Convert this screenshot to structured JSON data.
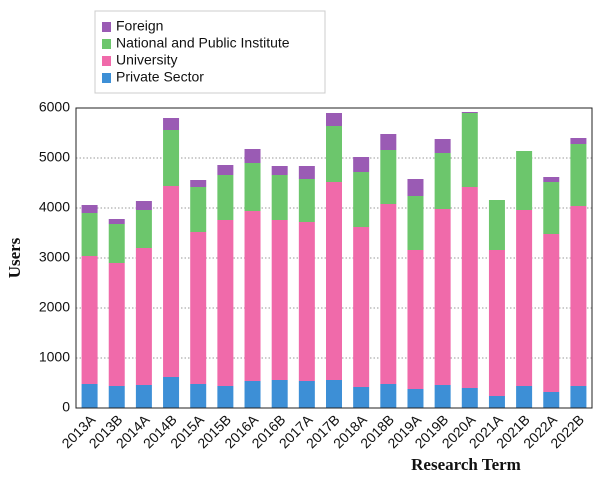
{
  "chart_data": {
    "type": "stacked_bar",
    "x_label": "Research Term",
    "y_label": "Users",
    "categories": [
      "2013A",
      "2013B",
      "2014A",
      "2014B",
      "2015A",
      "2015B",
      "2016A",
      "2016B",
      "2017A",
      "2017B",
      "2018A",
      "2018B",
      "2019A",
      "2019B",
      "2020A",
      "2021A",
      "2021B",
      "2022A",
      "2022B"
    ],
    "series": [
      {
        "name": "Private Sector",
        "color": "#3d8fd6",
        "values": [
          480,
          440,
          460,
          620,
          480,
          440,
          540,
          560,
          540,
          560,
          420,
          480,
          380,
          460,
          400,
          240,
          440,
          320,
          440
        ]
      },
      {
        "name": "University",
        "color": "#f06aaa",
        "values": [
          2560,
          2460,
          2740,
          3820,
          3040,
          3320,
          3400,
          3200,
          3180,
          3960,
          3200,
          3600,
          2780,
          3520,
          4020,
          2920,
          3520,
          3160,
          3600
        ]
      },
      {
        "name": "National and Public Institute",
        "color": "#6cc66c",
        "values": [
          860,
          780,
          760,
          1120,
          900,
          900,
          960,
          900,
          860,
          1120,
          1100,
          1080,
          1080,
          1120,
          1480,
          1000,
          1180,
          1040,
          1240
        ]
      },
      {
        "name": "Foreign",
        "color": "#9a5bb4",
        "values": [
          160,
          100,
          180,
          240,
          140,
          200,
          280,
          180,
          260,
          260,
          300,
          320,
          340,
          280,
          20,
          0,
          0,
          100,
          120
        ]
      }
    ],
    "ylim": [
      0,
      6000
    ],
    "yticks": [
      0,
      1000,
      2000,
      3000,
      4000,
      5000,
      6000
    ],
    "grid": true
  }
}
